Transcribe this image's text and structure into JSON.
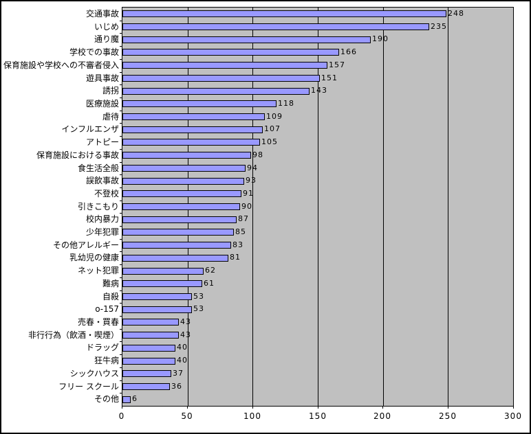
{
  "chart_data": {
    "type": "bar",
    "orientation": "horizontal",
    "title": "",
    "xlabel": "",
    "ylabel": "",
    "xlim": [
      0,
      300
    ],
    "x_ticks": [
      0,
      50,
      100,
      150,
      200,
      250,
      300
    ],
    "x_tick_labels": [
      "0",
      "50",
      "100",
      "150",
      "200",
      "250",
      "300"
    ],
    "grid": true,
    "value_labels_shown": true,
    "legend": false,
    "colors": {
      "bar_fill": "#9999FF",
      "bar_border": "#000000",
      "plot_background": "#C0C0C0",
      "gridline": "#000000",
      "text": "#000000",
      "chart_background": "#FFFFFF",
      "chart_border": "#000000"
    },
    "categories": [
      "交通事故",
      "いじめ",
      "通り魔",
      "学校での事故",
      "保育施設や学校への不審者侵入",
      "遊具事故",
      "誘拐",
      "医療施設",
      "虐待",
      "インフルエンザ",
      "アトピー",
      "保育施設における事故",
      "食生活全般",
      "誤飲事故",
      "不登校",
      "引きこもり",
      "校内暴力",
      "少年犯罪",
      "その他アレルギー",
      "乳幼児の健康",
      "ネット犯罪",
      "難病",
      "自殺",
      "o-157",
      "売春・買春",
      "非行行為（飲酒・喫煙）",
      "ドラッグ",
      "狂牛病",
      "シックハウス",
      "フリー スクール",
      "その他"
    ],
    "values": [
      248,
      235,
      190,
      166,
      157,
      151,
      143,
      118,
      109,
      107,
      105,
      98,
      94,
      93,
      91,
      90,
      87,
      85,
      83,
      81,
      62,
      61,
      53,
      53,
      43,
      43,
      40,
      40,
      37,
      36,
      6
    ]
  }
}
